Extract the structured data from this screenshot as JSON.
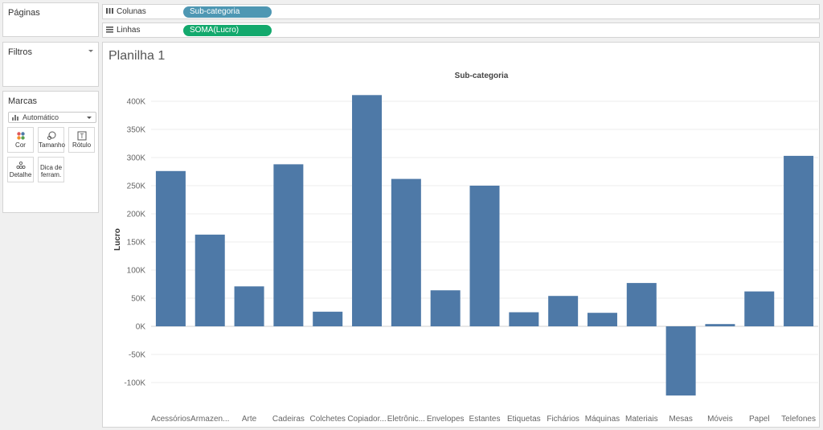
{
  "panels": {
    "pages": {
      "title": "Páginas"
    },
    "filters": {
      "title": "Filtros"
    },
    "marks": {
      "title": "Marcas",
      "mark_type": "Automático",
      "buttons": {
        "color": "Cor",
        "size": "Tamanho",
        "label": "Rótulo",
        "detail": "Detalhe",
        "tooltip_line1": "Dica de",
        "tooltip_line2": "ferram."
      }
    }
  },
  "shelves": {
    "columns": {
      "label": "Colunas",
      "pill": "Sub-categoria"
    },
    "rows": {
      "label": "Linhas",
      "pill": "SOMA(Lucro)"
    }
  },
  "colors": {
    "bar": "#4e79a7",
    "columns_pill": "#4e97b3",
    "rows_pill": "#13a96d"
  },
  "sheet": {
    "title": "Planilha 1"
  },
  "chart_data": {
    "type": "bar",
    "title": "Sub-categoria",
    "xlabel": "",
    "ylabel": "Lucro",
    "categories": [
      "Acessórios",
      "Armazen...",
      "Arte",
      "Cadeiras",
      "Colchetes",
      "Copiador...",
      "Eletrônic...",
      "Envelopes",
      "Estantes",
      "Etiquetas",
      "Fichários",
      "Máquinas",
      "Materiais",
      "Mesas",
      "Móveis",
      "Papel",
      "Telefones"
    ],
    "values": [
      276000,
      163000,
      71000,
      288000,
      26000,
      411000,
      262000,
      64000,
      250000,
      25000,
      54000,
      24000,
      77000,
      -123000,
      4000,
      62000,
      303000
    ],
    "ylim": [
      -140000,
      440000
    ],
    "yticks": [
      -100000,
      -50000,
      0,
      50000,
      100000,
      150000,
      200000,
      250000,
      300000,
      350000,
      400000
    ],
    "ytick_labels": [
      "-100K",
      "-50K",
      "0K",
      "50K",
      "100K",
      "150K",
      "200K",
      "250K",
      "300K",
      "350K",
      "400K"
    ],
    "grid": true
  }
}
